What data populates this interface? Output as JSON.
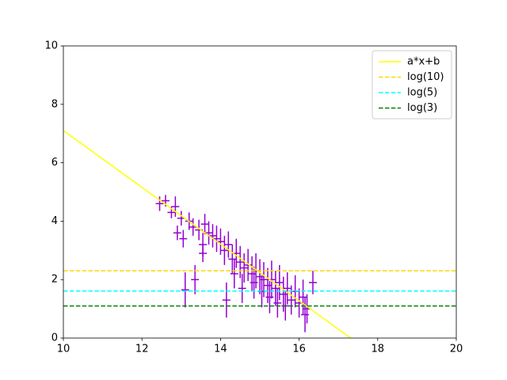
{
  "chart_data": {
    "type": "line",
    "xlim": [
      10,
      20
    ],
    "ylim": [
      0,
      10
    ],
    "xticks": [
      10,
      12,
      14,
      16,
      18,
      20
    ],
    "yticks": [
      0,
      2,
      4,
      6,
      8,
      10
    ],
    "legend": "upper right",
    "series": [
      {
        "name": "a*x+b",
        "color": "#ffff00",
        "dash": "solid",
        "x": [
          10,
          17.31
        ],
        "values": [
          7.1,
          0
        ]
      },
      {
        "name": "log(10)",
        "color": "#ffd700",
        "dash": "dashed",
        "x": [
          10,
          20
        ],
        "values": [
          2.303,
          2.303
        ]
      },
      {
        "name": "log(5)",
        "color": "#00ffff",
        "dash": "dashed",
        "x": [
          10,
          20
        ],
        "values": [
          1.609,
          1.609
        ]
      },
      {
        "name": "log(3)",
        "color": "#008000",
        "dash": "dashed",
        "x": [
          10,
          20
        ],
        "values": [
          1.099,
          1.099
        ]
      }
    ],
    "errorbar": {
      "color": "#9400d3",
      "x": [
        12.45,
        12.6,
        12.75,
        12.85,
        12.9,
        13.0,
        13.05,
        13.1,
        13.2,
        13.3,
        13.35,
        13.45,
        13.55,
        13.6,
        13.55,
        13.7,
        13.8,
        13.9,
        14.0,
        14.1,
        14.2,
        14.15,
        14.3,
        14.35,
        14.4,
        14.5,
        14.55,
        14.6,
        14.7,
        14.8,
        14.85,
        14.9,
        15.0,
        15.05,
        15.1,
        15.2,
        15.25,
        15.3,
        15.4,
        15.45,
        15.5,
        15.6,
        15.65,
        15.7,
        15.8,
        15.9,
        16.0,
        16.1,
        16.15,
        16.2,
        16.35
      ],
      "values": [
        4.6,
        4.7,
        4.3,
        4.5,
        3.6,
        4.1,
        3.4,
        1.65,
        4.0,
        3.8,
        2.0,
        3.7,
        3.2,
        3.9,
        2.9,
        3.6,
        3.5,
        3.4,
        3.3,
        3.0,
        3.2,
        1.3,
        2.7,
        2.2,
        2.9,
        2.6,
        1.7,
        2.4,
        2.5,
        2.2,
        1.9,
        2.3,
        2.1,
        1.6,
        2.0,
        1.8,
        1.4,
        2.0,
        1.7,
        1.2,
        1.9,
        1.5,
        1.1,
        1.7,
        1.3,
        1.6,
        1.2,
        1.4,
        0.8,
        1.0,
        1.9
      ],
      "yerr": [
        0.25,
        0.2,
        0.2,
        0.35,
        0.25,
        0.25,
        0.3,
        0.6,
        0.3,
        0.3,
        0.5,
        0.35,
        0.4,
        0.35,
        0.3,
        0.4,
        0.4,
        0.45,
        0.45,
        0.5,
        0.45,
        0.6,
        0.5,
        0.5,
        0.5,
        0.55,
        0.5,
        0.5,
        0.55,
        0.6,
        0.55,
        0.6,
        0.6,
        0.55,
        0.6,
        0.6,
        0.55,
        0.65,
        0.6,
        0.5,
        0.6,
        0.6,
        0.5,
        0.55,
        0.5,
        0.55,
        0.5,
        0.6,
        0.6,
        0.5,
        0.4
      ],
      "xerr": [
        0.1,
        0.1,
        0.1,
        0.1,
        0.1,
        0.1,
        0.1,
        0.1,
        0.1,
        0.1,
        0.1,
        0.1,
        0.1,
        0.1,
        0.1,
        0.1,
        0.1,
        0.1,
        0.1,
        0.1,
        0.1,
        0.1,
        0.1,
        0.1,
        0.1,
        0.1,
        0.1,
        0.1,
        0.1,
        0.1,
        0.1,
        0.1,
        0.1,
        0.1,
        0.1,
        0.1,
        0.1,
        0.1,
        0.1,
        0.1,
        0.1,
        0.1,
        0.1,
        0.1,
        0.1,
        0.1,
        0.1,
        0.1,
        0.1,
        0.1,
        0.1
      ]
    }
  }
}
